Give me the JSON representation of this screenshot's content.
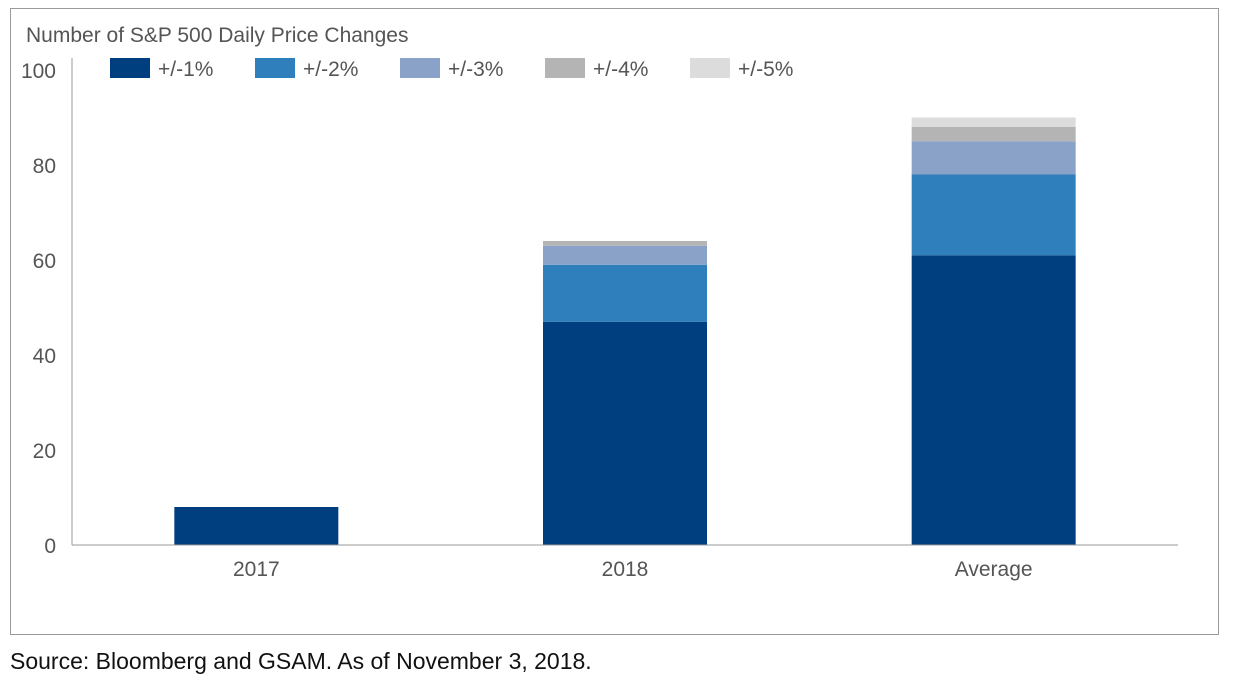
{
  "chart_data": {
    "type": "bar",
    "stacked": true,
    "title": "Number of S&P 500 Daily Price Changes",
    "categories": [
      "2017",
      "2018",
      "Average"
    ],
    "series": [
      {
        "name": "+/-1%",
        "color": "#003f7f",
        "values": [
          8,
          47,
          61
        ]
      },
      {
        "name": "+/-2%",
        "color": "#2f7fbc",
        "values": [
          0,
          12,
          17
        ]
      },
      {
        "name": "+/-3%",
        "color": "#8aa2c8",
        "values": [
          0,
          4,
          7
        ]
      },
      {
        "name": "+/-4%",
        "color": "#b4b4b4",
        "values": [
          0,
          1,
          3
        ]
      },
      {
        "name": "+/-5%",
        "color": "#dcdcdc",
        "values": [
          0,
          0,
          2
        ]
      }
    ],
    "ylim": [
      0,
      100
    ],
    "yticks": [
      0,
      20,
      40,
      60,
      80,
      100
    ],
    "xlabel": "",
    "ylabel": "",
    "legend_position": "top",
    "grid": false
  },
  "footer": {
    "source_text": "Source: Bloomberg and GSAM. As of November 3, 2018."
  }
}
